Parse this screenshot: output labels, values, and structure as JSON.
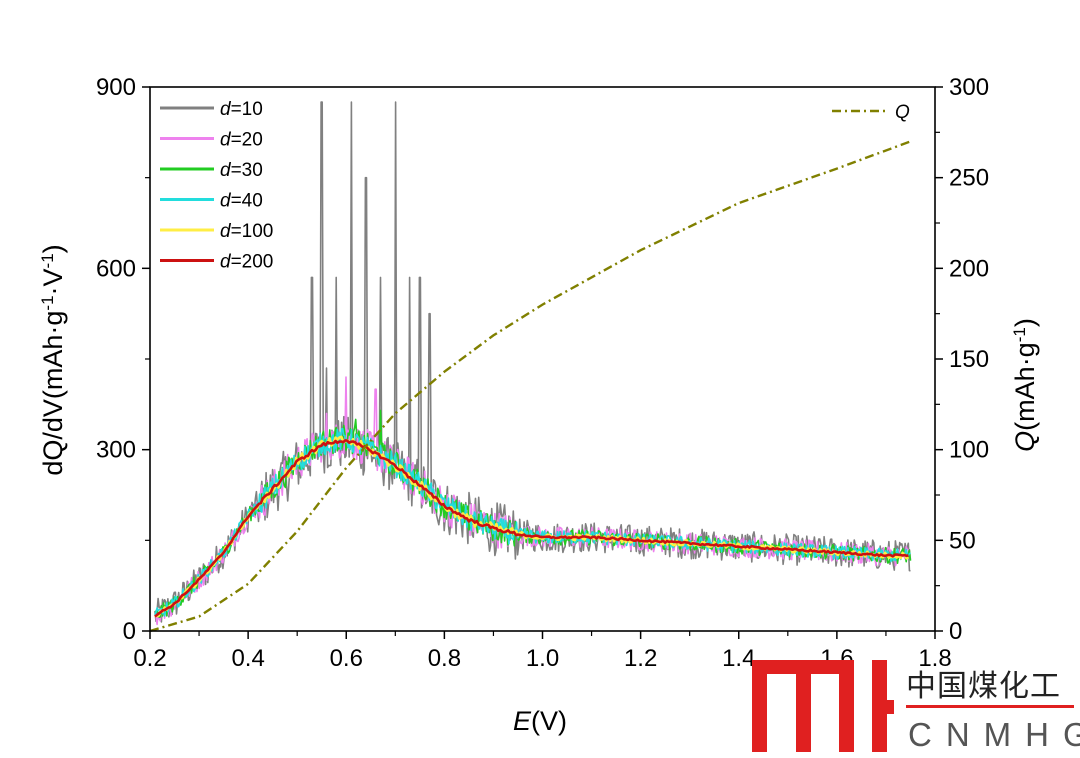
{
  "chart_data": {
    "type": "line",
    "xlabel": {
      "italic": "E",
      "rest": "(V)"
    },
    "ylabel_left": "dQ/dV(mAh·g-1·V-1)",
    "ylabel_right": "Q(mAh·g-1)",
    "x_ticks": [
      "0.2",
      "0.4",
      "0.6",
      "0.8",
      "1.0",
      "1.2",
      "1.4",
      "1.6",
      "1.8"
    ],
    "y_left_ticks": [
      "0",
      "300",
      "600",
      "900"
    ],
    "y_right_ticks": [
      "0",
      "50",
      "100",
      "150",
      "200",
      "250",
      "300"
    ],
    "xlim": [
      0.2,
      1.8
    ],
    "ylim_left": [
      0,
      900
    ],
    "ylim_right": [
      0,
      300
    ],
    "grid": false,
    "legend_position": "top-left",
    "curve_x": [
      0.21,
      0.25,
      0.3,
      0.35,
      0.4,
      0.45,
      0.5,
      0.55,
      0.6,
      0.65,
      0.7,
      0.75,
      0.8,
      0.85,
      0.9,
      0.95,
      1.0,
      1.1,
      1.2,
      1.3,
      1.4,
      1.5,
      1.6,
      1.7
    ],
    "series": [
      {
        "name": "d=10",
        "d": "10",
        "color": "#808080",
        "noise": 32,
        "spikes": [
          [
            0.55,
            875
          ],
          [
            0.61,
            875
          ],
          [
            0.64,
            750
          ],
          [
            0.7,
            875
          ],
          [
            0.75,
            585
          ],
          [
            0.53,
            585
          ],
          [
            0.58,
            585
          ],
          [
            0.67,
            585
          ],
          [
            0.73,
            585
          ],
          [
            0.77,
            525
          ],
          [
            0.56,
            435
          ]
        ],
        "values": [
          25,
          45,
          85,
          130,
          190,
          235,
          275,
          305,
          312,
          295,
          270,
          240,
          205,
          185,
          170,
          160,
          155,
          155,
          150,
          145,
          140,
          135,
          130,
          125
        ]
      },
      {
        "name": "d=20",
        "d": "20",
        "color": "#ee82ee",
        "noise": 22,
        "spikes": [
          [
            0.6,
            420
          ],
          [
            0.66,
            400
          ],
          [
            0.56,
            360
          ]
        ],
        "values": [
          25,
          45,
          85,
          130,
          190,
          235,
          280,
          310,
          318,
          300,
          275,
          242,
          208,
          185,
          170,
          160,
          155,
          155,
          150,
          145,
          140,
          135,
          130,
          125
        ]
      },
      {
        "name": "d=30",
        "d": "30",
        "color": "#22cc22",
        "noise": 16,
        "spikes": [
          [
            0.67,
            365
          ],
          [
            0.62,
            350
          ]
        ],
        "values": [
          25,
          45,
          85,
          130,
          190,
          235,
          282,
          312,
          320,
          302,
          276,
          243,
          208,
          185,
          170,
          160,
          155,
          155,
          150,
          145,
          140,
          135,
          130,
          125
        ]
      },
      {
        "name": "d=40",
        "d": "40",
        "color": "#22dddd",
        "noise": 14,
        "spikes": [],
        "values": [
          25,
          45,
          85,
          130,
          190,
          235,
          280,
          310,
          318,
          300,
          275,
          242,
          208,
          185,
          170,
          160,
          155,
          155,
          150,
          145,
          140,
          135,
          130,
          125
        ]
      },
      {
        "name": "d=100",
        "d": "100",
        "color": "#ffee44",
        "noise": 6,
        "spikes": [],
        "values": [
          25,
          45,
          85,
          130,
          190,
          235,
          280,
          308,
          316,
          299,
          274,
          241,
          207,
          184,
          170,
          160,
          155,
          155,
          150,
          145,
          140,
          135,
          130,
          125
        ]
      },
      {
        "name": "d=200",
        "d": "200",
        "color": "#cc1111",
        "noise": 2,
        "spikes": [],
        "values": [
          25,
          45,
          85,
          130,
          190,
          235,
          280,
          308,
          316,
          299,
          274,
          241,
          207,
          184,
          170,
          160,
          155,
          155,
          150,
          145,
          140,
          135,
          130,
          125
        ]
      }
    ],
    "q_series": {
      "name": "Q",
      "axis": "right",
      "color": "#808000",
      "x": [
        0.2,
        0.3,
        0.4,
        0.5,
        0.6,
        0.7,
        0.8,
        0.9,
        1.0,
        1.2,
        1.4,
        1.6,
        1.8
      ],
      "values": [
        0,
        8,
        26,
        55,
        90,
        120,
        143,
        163,
        180,
        210,
        236,
        255,
        270
      ]
    }
  },
  "watermark": {
    "mark": "TYH",
    "chinese": "中国煤化工",
    "english": "CNMHG",
    "color": "#e02020"
  }
}
